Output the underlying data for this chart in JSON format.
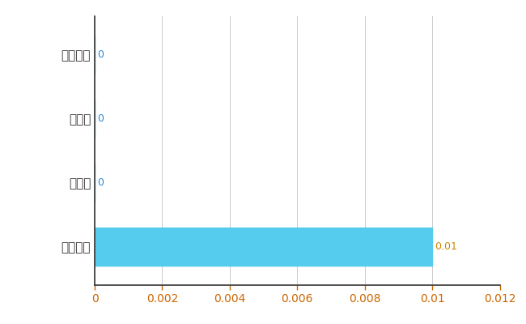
{
  "categories": [
    "全国平均",
    "県最大",
    "県平均",
    "小矢部市"
  ],
  "values": [
    0.01,
    0,
    0,
    0
  ],
  "bar_color": "#55CCEE",
  "value_labels": [
    "0.01",
    "0",
    "0",
    "0"
  ],
  "value_label_colors_bar": "#CC8800",
  "value_label_colors_zero": "#3388CC",
  "xlim": [
    0,
    0.012
  ],
  "xticks": [
    0,
    0.002,
    0.004,
    0.006,
    0.008,
    0.01,
    0.012
  ],
  "grid_color": "#CCCCCC",
  "background_color": "#FFFFFF",
  "bar_height": 0.6,
  "tick_label_fontsize": 10,
  "value_label_fontsize": 9,
  "ytick_fontsize": 11
}
